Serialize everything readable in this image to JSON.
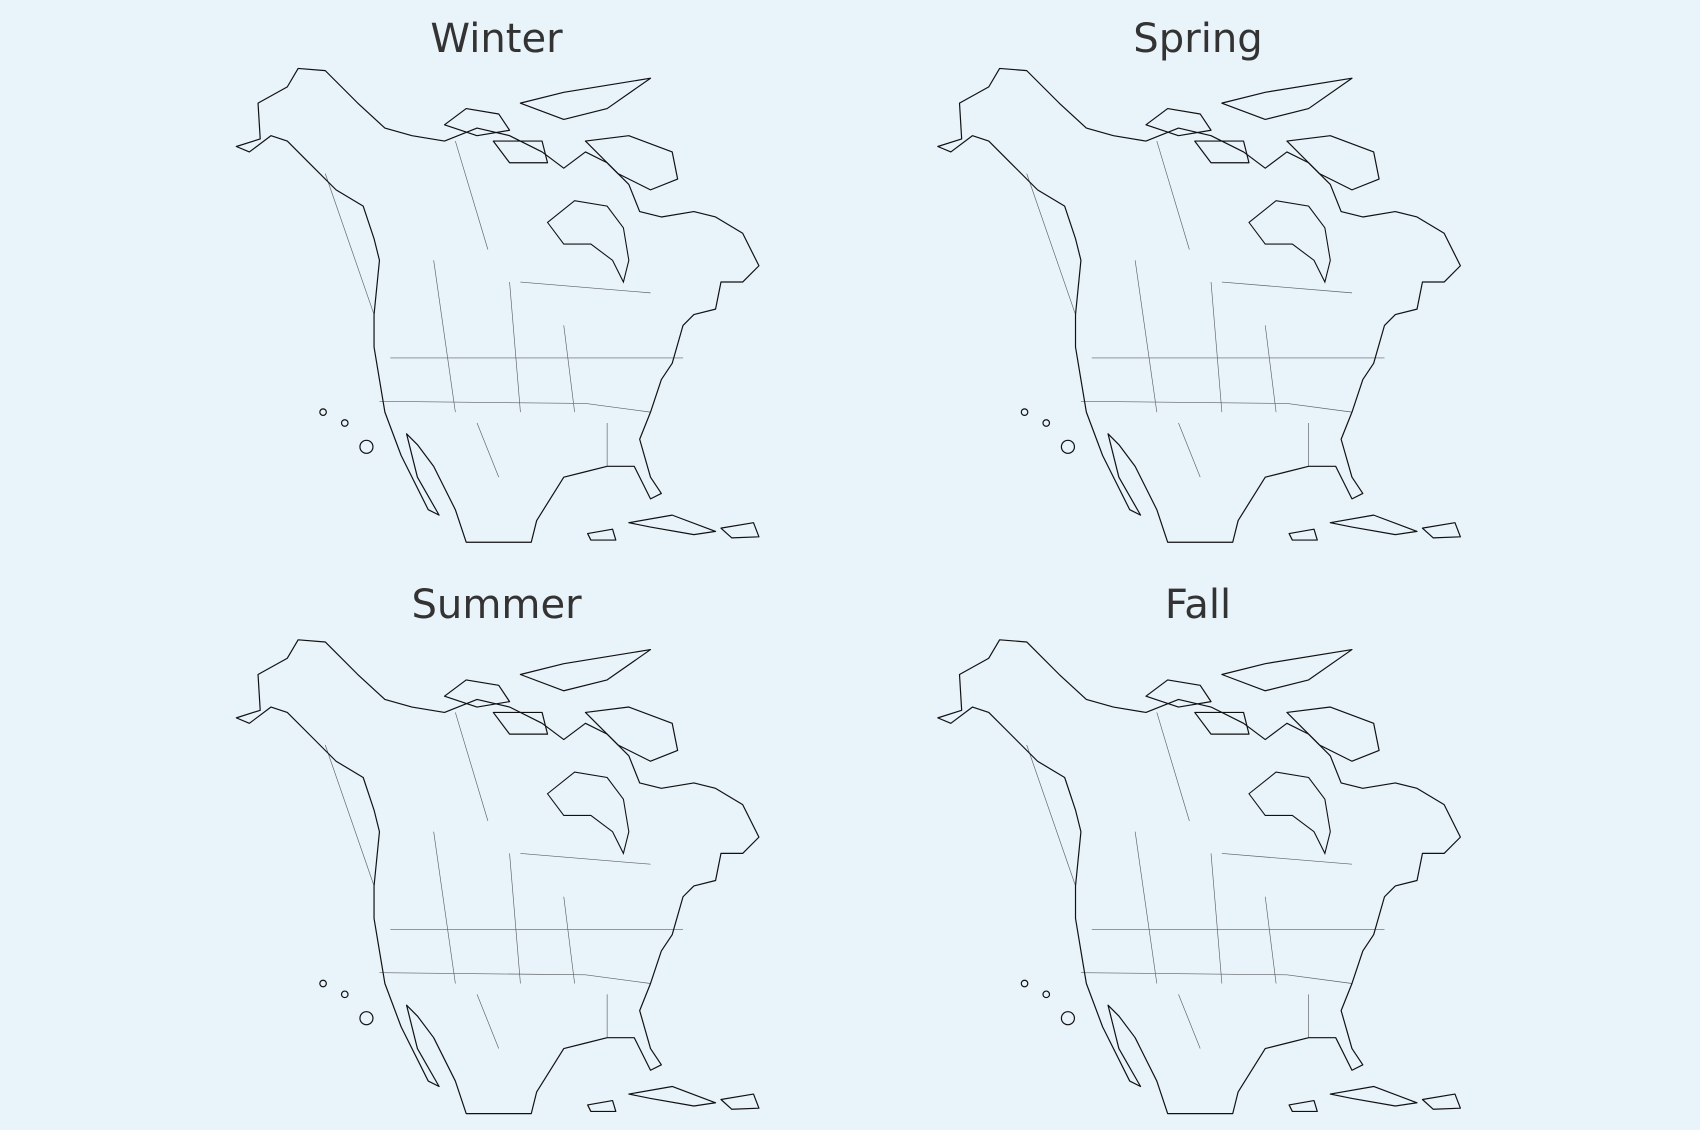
{
  "maps": [
    {
      "title": "Winter"
    },
    {
      "title": "Spring"
    },
    {
      "title": "Summer"
    },
    {
      "title": "Fall"
    }
  ]
}
